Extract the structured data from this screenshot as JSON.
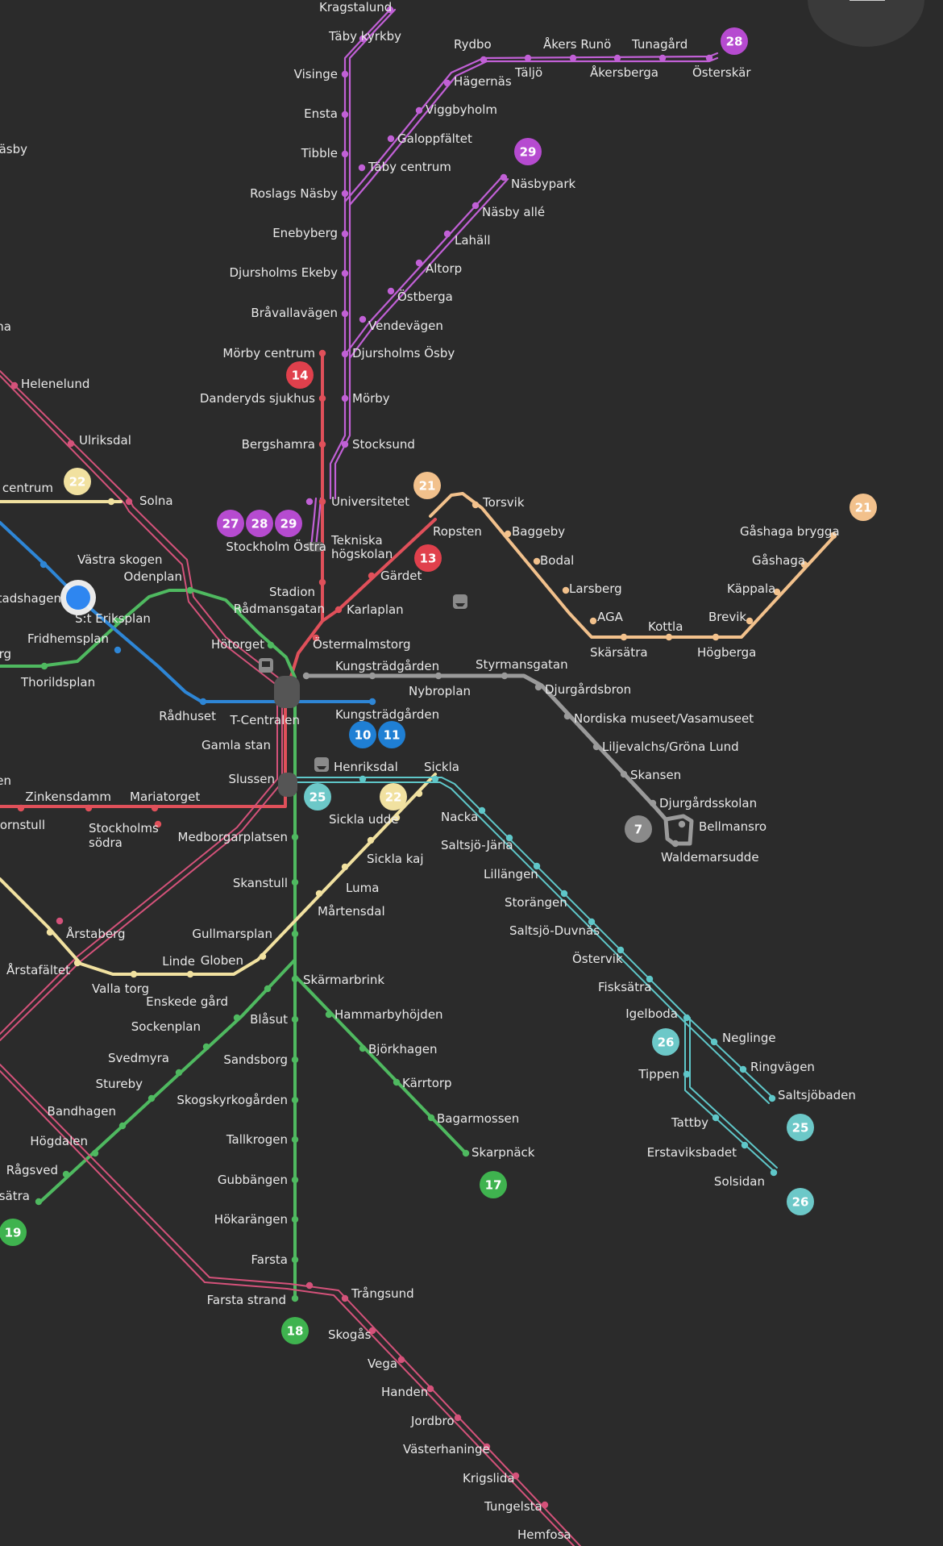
{
  "colors": {
    "background": "#2b2b2b",
    "purple": "#c160d6",
    "red": "#e0505a",
    "green": "#4fb960",
    "blue": "#2e86d6",
    "pink": "#d4527a",
    "yellow": "#f1e1a0",
    "orange": "#f2c18c",
    "teal": "#5fc7c9",
    "grey": "#9a9a9a"
  },
  "badges": [
    {
      "text": "28",
      "color": "#b64bd0"
    },
    {
      "text": "29",
      "color": "#b64bd0"
    },
    {
      "text": "14",
      "color": "#e0404c"
    },
    {
      "text": "22",
      "color": "#f1e1a0"
    },
    {
      "text": "21",
      "color": "#f2c18c"
    },
    {
      "text": "21",
      "color": "#f2c18c"
    },
    {
      "text": "27",
      "color": "#b64bd0"
    },
    {
      "text": "28",
      "color": "#b64bd0"
    },
    {
      "text": "29",
      "color": "#b64bd0"
    },
    {
      "text": "13",
      "color": "#e0404c"
    },
    {
      "text": "10",
      "color": "#1f7fd4"
    },
    {
      "text": "11",
      "color": "#1f7fd4"
    },
    {
      "text": "25",
      "color": "#6cc8c8"
    },
    {
      "text": "22",
      "color": "#f1e1a0"
    },
    {
      "text": "7",
      "color": "#8a8a8a"
    },
    {
      "text": "26",
      "color": "#6cc8c8"
    },
    {
      "text": "25",
      "color": "#6cc8c8"
    },
    {
      "text": "26",
      "color": "#6cc8c8"
    },
    {
      "text": "17",
      "color": "#3fb34f"
    },
    {
      "text": "19",
      "color": "#3fb34f"
    },
    {
      "text": "18",
      "color": "#3fb34f"
    }
  ],
  "stations": [
    "Kragstalund",
    "Täby kyrkby",
    "Visinge",
    "Ensta",
    "Tibble",
    "Roslags Näsby",
    "Enebyberg",
    "Djursholms Ekeby",
    "Bråvallavägen",
    "Mörby centrum",
    "Danderyds sjukhus",
    "Bergshamra",
    "Universitetet",
    "Tekniska",
    "högskolan",
    "Stockholm Östra",
    "Stadion",
    "Rådmansgatan",
    "Hötorget",
    "Rydbo",
    "Åkers Runö",
    "Tunagård",
    "Täljö",
    "Hägernäs",
    "Åkersberga",
    "Österskär",
    "Viggbyholm",
    "Galoppfältet",
    "Täby centrum",
    "Näsbypark",
    "Näsby allé",
    "Lahäll",
    "Altorp",
    "Östberga",
    "Vendevägen",
    "Djursholms Ösby",
    "Mörby",
    "Stocksund",
    "Torsvik",
    "Ropsten",
    "Baggeby",
    "Bodal",
    "Larsberg",
    "AGA",
    "Skärsätra",
    "Kottla",
    "Brevik",
    "Högberga",
    "Käppala",
    "Gåshaga",
    "Gåshaga brygga",
    "Gärdet",
    "Karlaplan",
    "Östermalmstorg",
    "Kungsträdgården",
    "Styrmansgatan",
    "Nybroplan",
    "Djurgårdsbron",
    "Nordiska museet/Vasamuseet",
    "Liljevalchs/Gröna Lund",
    "Skansen",
    "Djurgårdsskolan",
    "Bellmansro",
    "Waldemarsudde",
    "Kungsträdgården",
    "T-Centralen",
    "Rådhuset",
    "Gamla stan",
    "Slussen",
    "Henriksdal",
    "Sickla",
    "Sickla udde",
    "Nacka",
    "Saltsjö-Järla",
    "Sickla kaj",
    "Lillängen",
    "Luma",
    "Storängen",
    "Mårtensdal",
    "Saltsjö-Duvnäs",
    "Östervik",
    "Fisksätra",
    "Igelboda",
    "Neglinge",
    "Ringvägen",
    "Saltsjöbaden",
    "Tippen",
    "Tattby",
    "Erstaviksbadet",
    "Solsidan",
    "Medborgarplatsen",
    "Skanstull",
    "Gullmarsplan",
    "Skärmarbrink",
    "Hammarbyhöjden",
    "Björkhagen",
    "Kärrtorp",
    "Bagarmossen",
    "Skarpnäck",
    "Blåsut",
    "Sandsborg",
    "Skogskyrkogården",
    "Tallkrogen",
    "Gubbängen",
    "Hökarängen",
    "Farsta",
    "Farsta strand",
    "Trångsund",
    "Skogås",
    "Vega",
    "Handen",
    "Jordbro",
    "Västerhaninge",
    "Krigslida",
    "Tungelsta",
    "Hemfosa",
    "Globen",
    "Linde",
    "Enskede gård",
    "Sockenplan",
    "Svedmyra",
    "Stureby",
    "Bandhagen",
    "Högdalen",
    "Rågsved",
    "gsätra",
    "Valla torg",
    "Årstaberg",
    "Årstafältet",
    "Zinkensdamm",
    "Mariatorget",
    "Hornstull",
    "Stockholms",
    "södra",
    "Thorildsplan",
    "Fridhemsplan",
    "S:t Eriksplan",
    "Stadshagen",
    "Västra skogen",
    "Odenplan",
    "Solna",
    "Ulriksdal",
    "Helenelund",
    "a centrum",
    "Väsby",
    "una",
    "erg",
    "en"
  ]
}
